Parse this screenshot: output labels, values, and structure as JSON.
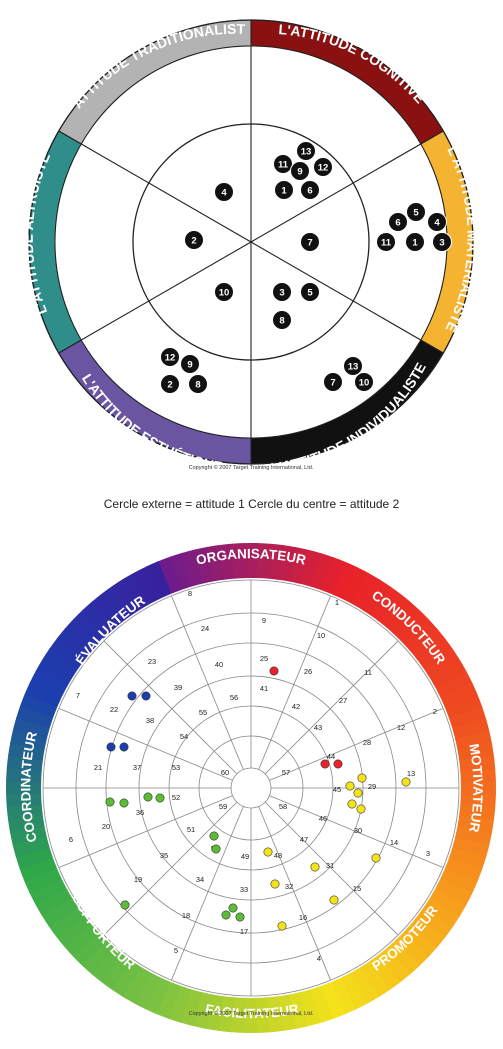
{
  "top_diagram": {
    "segments": [
      {
        "label": "L'ATTITUDE TRADITIONALISTE",
        "color": "#b3b3b3"
      },
      {
        "label": "L'ATTITUDE COGNITIVE",
        "color": "#8a1111"
      },
      {
        "label": "L'ATTITUDE MATÉRIALISTE",
        "color": "#f4b331"
      },
      {
        "label": "L'ATTITUDE INDIVIDUALISTE",
        "color": "#111111"
      },
      {
        "label": "L'ATTITUDE ESTHÉTIQUE",
        "color": "#6a55a3"
      },
      {
        "label": "L'ATTITUDE ALTRUISTE",
        "color": "#2f8d8a"
      }
    ],
    "markers": [
      {
        "n": "13"
      },
      {
        "n": "11"
      },
      {
        "n": "9"
      },
      {
        "n": "12"
      },
      {
        "n": "1"
      },
      {
        "n": "6"
      },
      {
        "n": "4"
      },
      {
        "n": "2"
      },
      {
        "n": "7"
      },
      {
        "n": "10"
      },
      {
        "n": "3"
      },
      {
        "n": "5"
      },
      {
        "n": "8"
      },
      {
        "n": "6"
      },
      {
        "n": "5"
      },
      {
        "n": "4"
      },
      {
        "n": "11"
      },
      {
        "n": "1"
      },
      {
        "n": "3"
      },
      {
        "n": "12"
      },
      {
        "n": "9"
      },
      {
        "n": "2"
      },
      {
        "n": "8"
      },
      {
        "n": "13"
      },
      {
        "n": "7"
      },
      {
        "n": "10"
      }
    ],
    "copyright": "Copyright © 2007 Target Training International, Ltd."
  },
  "caption": "Cercle externe = attitude 1   Cercle du centre = attitude 2",
  "bottom_diagram": {
    "outer_labels": [
      "ORGANISATEUR",
      "CONDUCTEUR",
      "MOTIVATEUR",
      "PROMOTEUR",
      "FACILITATEUR",
      "SUPPORTEUR",
      "COORDINATEUR",
      "ÉVALUATEUR"
    ],
    "outer_colors": [
      "#6e1c8c",
      "#e8212a",
      "#f06a1d",
      "#f4e21a",
      "#b8d432",
      "#5cbc36",
      "#1c3fb0",
      "#3a1f9c"
    ],
    "region_numbers": [
      "1",
      "2",
      "3",
      "4",
      "5",
      "6",
      "7",
      "8",
      "9",
      "10",
      "11",
      "12",
      "13",
      "14",
      "15",
      "16",
      "17",
      "18",
      "19",
      "20",
      "21",
      "22",
      "23",
      "24",
      "25",
      "26",
      "27",
      "28",
      "29",
      "30",
      "31",
      "32",
      "33",
      "34",
      "35",
      "36",
      "37",
      "38",
      "39",
      "40",
      "41",
      "42",
      "43",
      "44",
      "45",
      "46",
      "47",
      "48",
      "49",
      "50",
      "51",
      "52",
      "53",
      "54",
      "55",
      "56",
      "57",
      "58",
      "59",
      "60"
    ],
    "copyright": "Copyright © 2007 Target Training International, Ltd."
  }
}
